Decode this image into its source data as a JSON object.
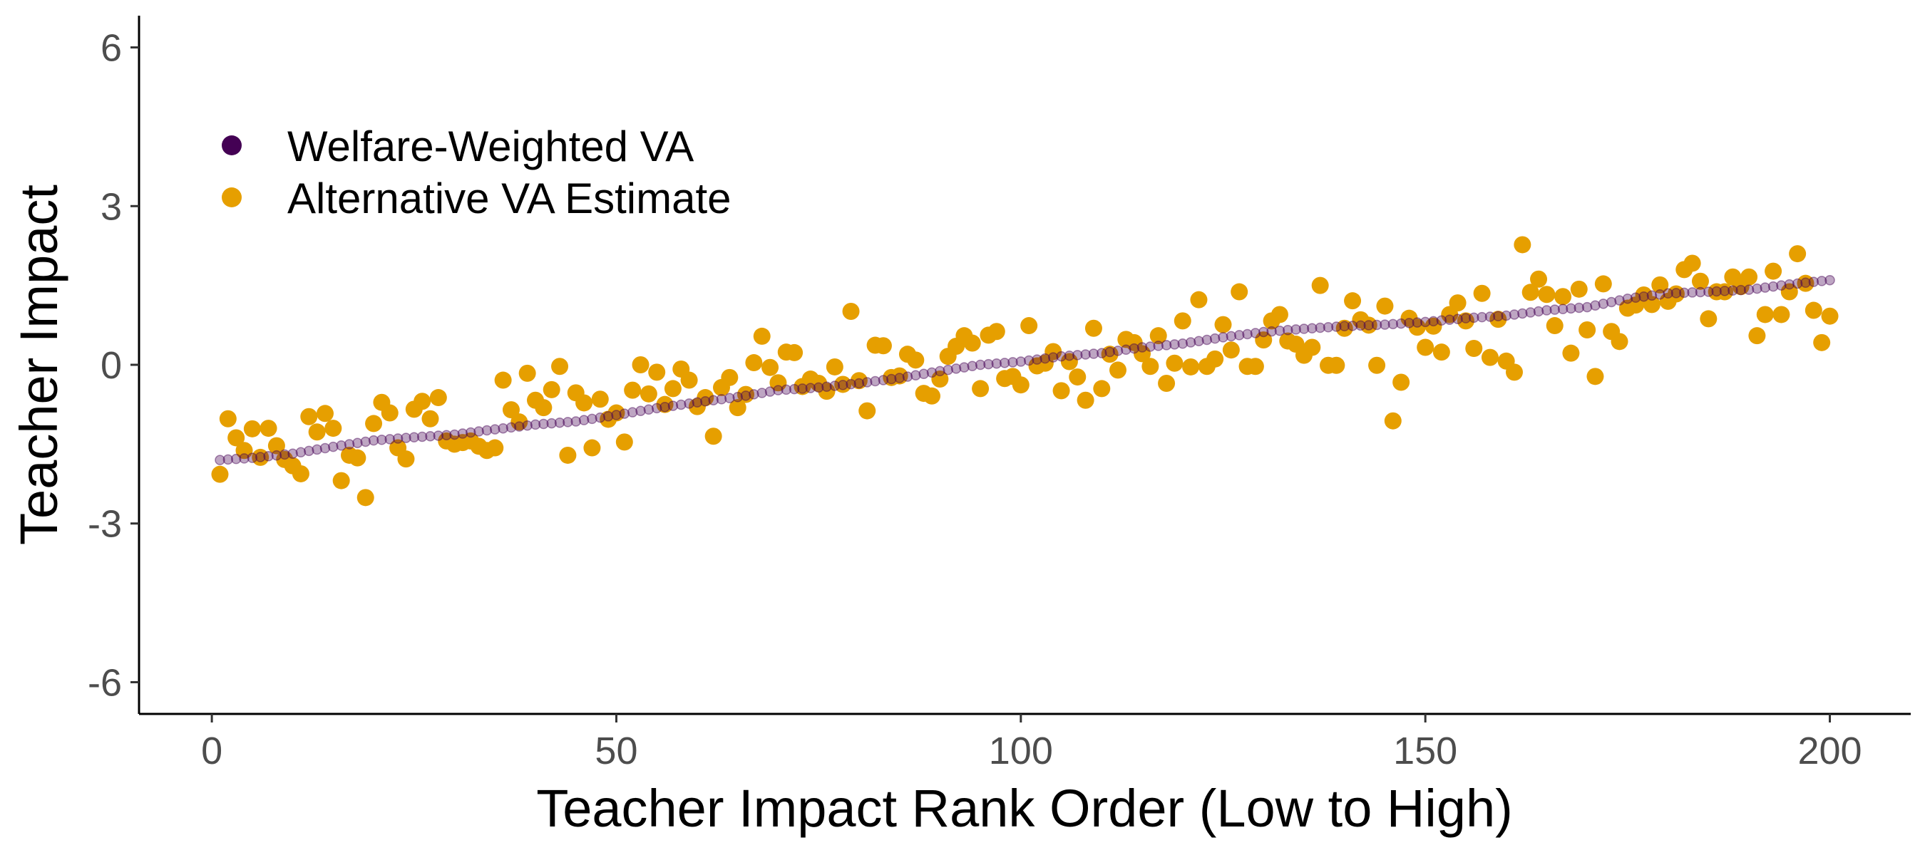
{
  "chart_data": {
    "type": "scatter",
    "title": "",
    "xlabel": "Teacher Impact Rank Order (Low to High)",
    "ylabel": "Teacher Impact",
    "xlim": [
      -9,
      210
    ],
    "ylim": [
      -6.6,
      6.6
    ],
    "x_ticks": [
      0,
      50,
      100,
      150,
      200
    ],
    "x_tick_labels": [
      "0",
      "50",
      "100",
      "150",
      "200"
    ],
    "y_ticks": [
      6,
      3,
      0,
      -3,
      -6
    ],
    "y_tick_labels": [
      "6",
      "3",
      "0",
      "-3",
      "-6"
    ],
    "grid": false,
    "legend_position": "top-left",
    "series": [
      {
        "name": "Welfare-Weighted VA",
        "color": "#440154",
        "fill_opacity": 0.35,
        "marker": "small-circle",
        "points": [
          [
            1,
            -1.8
          ],
          [
            5,
            -1.76
          ],
          [
            10,
            -1.68
          ],
          [
            15,
            -1.55
          ],
          [
            20,
            -1.43
          ],
          [
            25,
            -1.37
          ],
          [
            30,
            -1.32
          ],
          [
            35,
            -1.22
          ],
          [
            40,
            -1.13
          ],
          [
            45,
            -1.07
          ],
          [
            50,
            -0.95
          ],
          [
            55,
            -0.82
          ],
          [
            60,
            -0.71
          ],
          [
            65,
            -0.61
          ],
          [
            70,
            -0.48
          ],
          [
            75,
            -0.43
          ],
          [
            80,
            -0.35
          ],
          [
            85,
            -0.25
          ],
          [
            90,
            -0.12
          ],
          [
            95,
            0.0
          ],
          [
            100,
            0.06
          ],
          [
            105,
            0.16
          ],
          [
            110,
            0.22
          ],
          [
            115,
            0.33
          ],
          [
            120,
            0.4
          ],
          [
            125,
            0.52
          ],
          [
            130,
            0.62
          ],
          [
            135,
            0.68
          ],
          [
            140,
            0.73
          ],
          [
            145,
            0.76
          ],
          [
            150,
            0.81
          ],
          [
            155,
            0.88
          ],
          [
            160,
            0.93
          ],
          [
            165,
            1.03
          ],
          [
            170,
            1.09
          ],
          [
            175,
            1.25
          ],
          [
            180,
            1.35
          ],
          [
            185,
            1.38
          ],
          [
            190,
            1.42
          ],
          [
            195,
            1.52
          ],
          [
            200,
            1.6
          ]
        ]
      },
      {
        "name": "Alternative VA Estimate",
        "color": "#E69F00",
        "marker": "circle",
        "points": [
          [
            1,
            -2.07
          ],
          [
            2,
            -1.02
          ],
          [
            3,
            -1.38
          ],
          [
            4,
            -1.62
          ],
          [
            5,
            -1.21
          ],
          [
            6,
            -1.75
          ],
          [
            7,
            -1.2
          ],
          [
            8,
            -1.53
          ],
          [
            9,
            -1.79
          ],
          [
            10,
            -1.91
          ],
          [
            11,
            -2.06
          ],
          [
            12,
            -0.98
          ],
          [
            13,
            -1.27
          ],
          [
            14,
            -0.92
          ],
          [
            15,
            -1.2
          ],
          [
            16,
            -2.19
          ],
          [
            17,
            -1.71
          ],
          [
            18,
            -1.76
          ],
          [
            19,
            -2.51
          ],
          [
            20,
            -1.11
          ],
          [
            21,
            -0.71
          ],
          [
            22,
            -0.91
          ],
          [
            23,
            -1.57
          ],
          [
            24,
            -1.78
          ],
          [
            25,
            -0.84
          ],
          [
            26,
            -0.69
          ],
          [
            27,
            -1.02
          ],
          [
            28,
            -0.62
          ],
          [
            29,
            -1.44
          ],
          [
            30,
            -1.5
          ],
          [
            31,
            -1.47
          ],
          [
            32,
            -1.44
          ],
          [
            33,
            -1.54
          ],
          [
            34,
            -1.62
          ],
          [
            35,
            -1.57
          ],
          [
            36,
            -0.29
          ],
          [
            37,
            -0.85
          ],
          [
            38,
            -1.08
          ],
          [
            39,
            -0.16
          ],
          [
            40,
            -0.67
          ],
          [
            41,
            -0.81
          ],
          [
            42,
            -0.47
          ],
          [
            43,
            -0.03
          ],
          [
            44,
            -1.71
          ],
          [
            45,
            -0.53
          ],
          [
            46,
            -0.72
          ],
          [
            47,
            -1.57
          ],
          [
            48,
            -0.65
          ],
          [
            49,
            -1.03
          ],
          [
            50,
            -0.91
          ],
          [
            51,
            -1.46
          ],
          [
            52,
            -0.48
          ],
          [
            53,
            0.0
          ],
          [
            54,
            -0.55
          ],
          [
            55,
            -0.14
          ],
          [
            56,
            -0.75
          ],
          [
            57,
            -0.45
          ],
          [
            58,
            -0.08
          ],
          [
            59,
            -0.29
          ],
          [
            60,
            -0.79
          ],
          [
            61,
            -0.62
          ],
          [
            62,
            -1.35
          ],
          [
            63,
            -0.43
          ],
          [
            64,
            -0.24
          ],
          [
            65,
            -0.81
          ],
          [
            66,
            -0.56
          ],
          [
            67,
            0.04
          ],
          [
            68,
            0.54
          ],
          [
            69,
            -0.05
          ],
          [
            70,
            -0.34
          ],
          [
            71,
            0.24
          ],
          [
            72,
            0.23
          ],
          [
            73,
            -0.41
          ],
          [
            74,
            -0.27
          ],
          [
            75,
            -0.35
          ],
          [
            76,
            -0.5
          ],
          [
            77,
            -0.04
          ],
          [
            78,
            -0.37
          ],
          [
            79,
            1.01
          ],
          [
            80,
            -0.3
          ],
          [
            81,
            -0.87
          ],
          [
            82,
            0.37
          ],
          [
            83,
            0.36
          ],
          [
            84,
            -0.24
          ],
          [
            85,
            -0.21
          ],
          [
            86,
            0.2
          ],
          [
            87,
            0.09
          ],
          [
            88,
            -0.54
          ],
          [
            89,
            -0.59
          ],
          [
            90,
            -0.27
          ],
          [
            91,
            0.16
          ],
          [
            92,
            0.35
          ],
          [
            93,
            0.55
          ],
          [
            94,
            0.41
          ],
          [
            95,
            -0.45
          ],
          [
            96,
            0.56
          ],
          [
            97,
            0.63
          ],
          [
            98,
            -0.26
          ],
          [
            99,
            -0.22
          ],
          [
            100,
            -0.38
          ],
          [
            101,
            0.74
          ],
          [
            102,
            -0.02
          ],
          [
            103,
            0.03
          ],
          [
            104,
            0.25
          ],
          [
            105,
            -0.49
          ],
          [
            106,
            0.06
          ],
          [
            107,
            -0.23
          ],
          [
            108,
            -0.67
          ],
          [
            109,
            0.69
          ],
          [
            110,
            -0.45
          ],
          [
            111,
            0.2
          ],
          [
            112,
            -0.1
          ],
          [
            113,
            0.48
          ],
          [
            114,
            0.42
          ],
          [
            115,
            0.21
          ],
          [
            116,
            -0.03
          ],
          [
            117,
            0.55
          ],
          [
            118,
            -0.35
          ],
          [
            119,
            0.03
          ],
          [
            120,
            0.83
          ],
          [
            121,
            -0.04
          ],
          [
            122,
            1.23
          ],
          [
            123,
            -0.03
          ],
          [
            124,
            0.11
          ],
          [
            125,
            0.76
          ],
          [
            126,
            0.28
          ],
          [
            127,
            1.38
          ],
          [
            128,
            -0.03
          ],
          [
            129,
            -0.03
          ],
          [
            130,
            0.47
          ],
          [
            131,
            0.83
          ],
          [
            132,
            0.95
          ],
          [
            133,
            0.45
          ],
          [
            134,
            0.39
          ],
          [
            135,
            0.18
          ],
          [
            136,
            0.33
          ],
          [
            137,
            1.5
          ],
          [
            138,
            -0.01
          ],
          [
            139,
            -0.01
          ],
          [
            140,
            0.69
          ],
          [
            141,
            1.21
          ],
          [
            142,
            0.85
          ],
          [
            143,
            0.75
          ],
          [
            144,
            -0.01
          ],
          [
            145,
            1.11
          ],
          [
            146,
            -1.06
          ],
          [
            147,
            -0.33
          ],
          [
            148,
            0.88
          ],
          [
            149,
            0.71
          ],
          [
            150,
            0.33
          ],
          [
            151,
            0.73
          ],
          [
            152,
            0.24
          ],
          [
            153,
            0.95
          ],
          [
            154,
            1.17
          ],
          [
            155,
            0.83
          ],
          [
            156,
            0.31
          ],
          [
            157,
            1.35
          ],
          [
            158,
            0.14
          ],
          [
            159,
            0.86
          ],
          [
            160,
            0.07
          ],
          [
            161,
            -0.14
          ],
          [
            162,
            2.27
          ],
          [
            163,
            1.37
          ],
          [
            164,
            1.62
          ],
          [
            165,
            1.33
          ],
          [
            166,
            0.74
          ],
          [
            167,
            1.29
          ],
          [
            168,
            0.22
          ],
          [
            169,
            1.43
          ],
          [
            170,
            0.66
          ],
          [
            171,
            -0.22
          ],
          [
            172,
            1.53
          ],
          [
            173,
            0.63
          ],
          [
            174,
            0.44
          ],
          [
            175,
            1.07
          ],
          [
            176,
            1.13
          ],
          [
            177,
            1.32
          ],
          [
            178,
            1.14
          ],
          [
            179,
            1.51
          ],
          [
            180,
            1.2
          ],
          [
            181,
            1.34
          ],
          [
            182,
            1.8
          ],
          [
            183,
            1.92
          ],
          [
            184,
            1.58
          ],
          [
            185,
            0.87
          ],
          [
            186,
            1.38
          ],
          [
            187,
            1.38
          ],
          [
            188,
            1.66
          ],
          [
            189,
            1.48
          ],
          [
            190,
            1.66
          ],
          [
            191,
            0.55
          ],
          [
            192,
            0.95
          ],
          [
            193,
            1.77
          ],
          [
            194,
            0.95
          ],
          [
            195,
            1.38
          ],
          [
            196,
            2.1
          ],
          [
            197,
            1.54
          ],
          [
            198,
            1.03
          ],
          [
            199,
            0.42
          ],
          [
            200,
            0.92
          ]
        ]
      }
    ]
  }
}
